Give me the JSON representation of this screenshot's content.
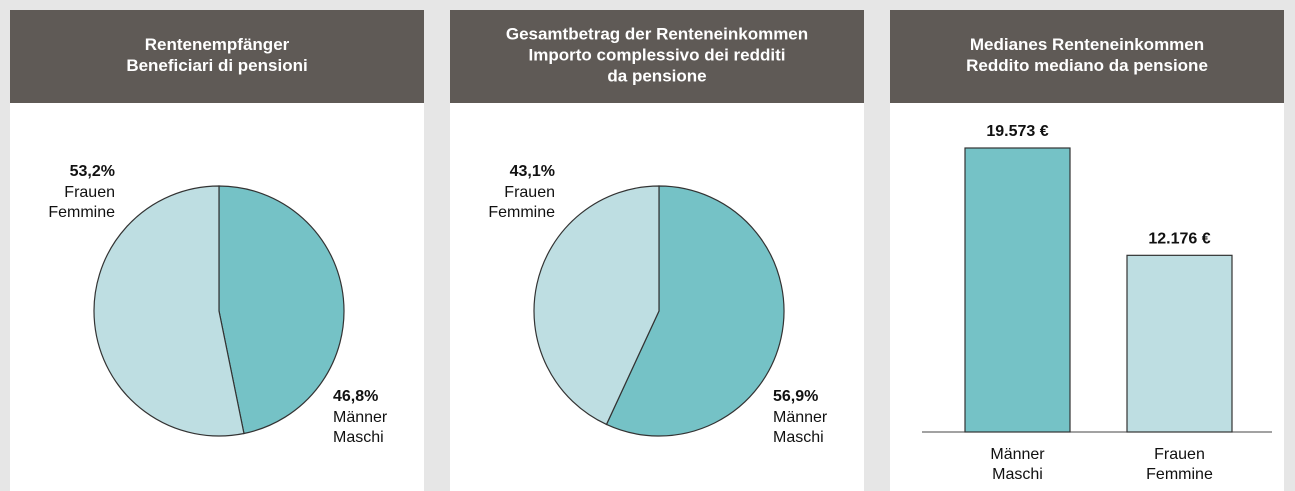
{
  "chart_data": [
    {
      "type": "pie",
      "title": [
        "Rentenempfänger",
        "Beneficiari di pensioni"
      ],
      "categories": [
        [
          "Männer",
          "Maschi"
        ],
        [
          "Frauen",
          "Femmine"
        ]
      ],
      "values": [
        46.8,
        53.2
      ],
      "value_labels": [
        "46,8%",
        "53,2%"
      ],
      "colors": [
        "#75c2c6",
        "#bedee2"
      ]
    },
    {
      "type": "pie",
      "title": [
        "Gesamtbetrag der Renteneinkommen",
        "Importo complessivo dei redditi",
        "da pensione"
      ],
      "categories": [
        [
          "Männer",
          "Maschi"
        ],
        [
          "Frauen",
          "Femmine"
        ]
      ],
      "values": [
        56.9,
        43.1
      ],
      "value_labels": [
        "56,9%",
        "43,1%"
      ],
      "colors": [
        "#75c2c6",
        "#bedee2"
      ]
    },
    {
      "type": "bar",
      "title": [
        "Medianes Renteneinkommen",
        "Reddito mediano da pensione"
      ],
      "categories": [
        [
          "Männer",
          "Maschi"
        ],
        [
          "Frauen",
          "Femmine"
        ]
      ],
      "values": [
        19573,
        12176
      ],
      "value_labels": [
        "19.573 €",
        "12.176 €"
      ],
      "colors": [
        "#75c2c6",
        "#bedee2"
      ]
    }
  ]
}
